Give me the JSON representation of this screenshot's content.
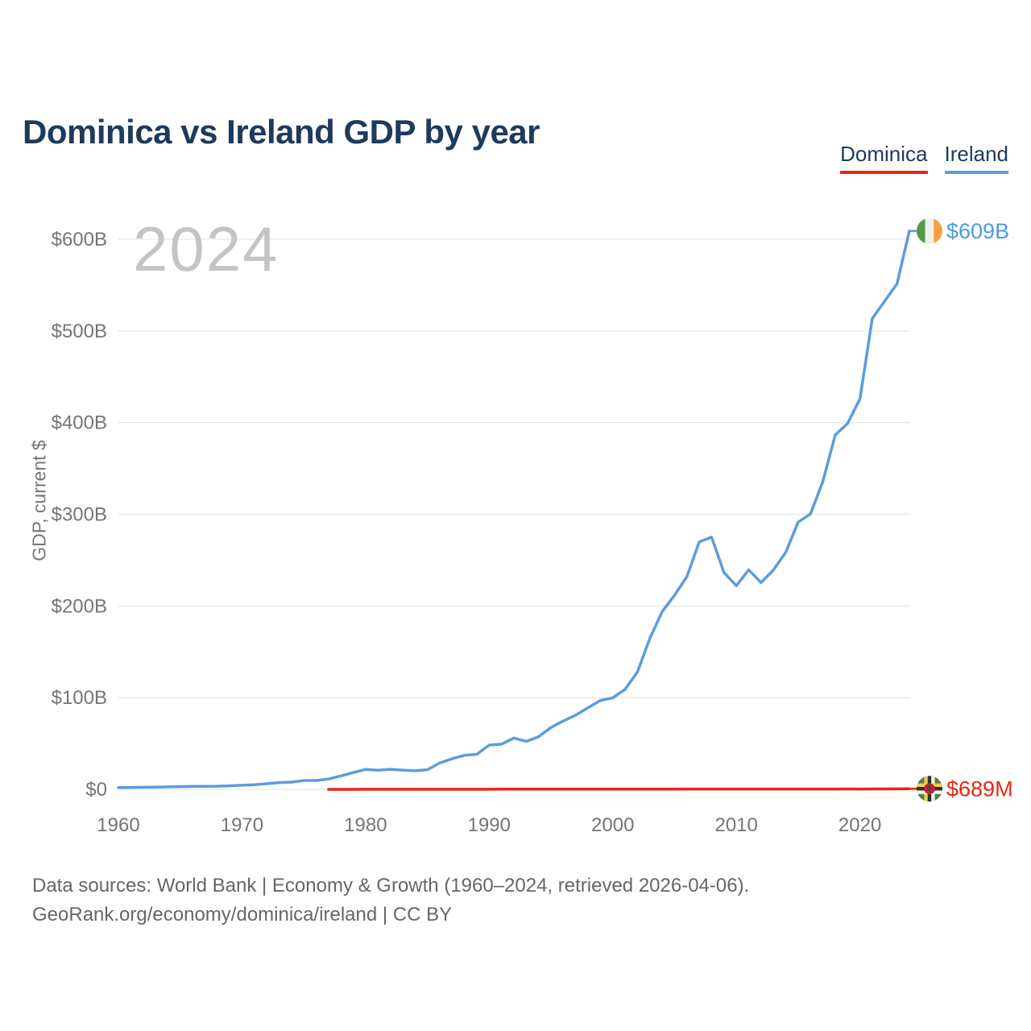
{
  "page": {
    "title": "Dominica vs Ireland GDP by year",
    "watermark_year": "2024",
    "footer_line1": "Data sources: World Bank | Economy & Growth (1960–2024, retrieved 2026-04-06).",
    "footer_line2": "GeoRank.org/economy/dominica/ireland | CC BY"
  },
  "legend": {
    "items": [
      {
        "label": "Dominica",
        "color": "#ee2414"
      },
      {
        "label": "Ireland",
        "color": "#5b9ddf"
      }
    ]
  },
  "chart_data": {
    "type": "line",
    "title": "Dominica vs Ireland GDP by year",
    "xlabel": "",
    "ylabel": "GDP, current $",
    "grid": "horizontal",
    "legend_position": "top-right",
    "xlim_years": [
      1960,
      2024
    ],
    "ylim_billions": [
      0,
      600
    ],
    "x_tick_years": [
      1960,
      1970,
      1980,
      1990,
      2000,
      2010,
      2020
    ],
    "y_gridlines_billions": [
      0,
      100,
      200,
      300,
      400,
      500,
      600
    ],
    "y_tick_labels": [
      "$0",
      "$100B",
      "$200B",
      "$300B",
      "$400B",
      "$500B",
      "$600B"
    ],
    "axis_text_color": "#757575",
    "gridline_color": "#e8e8e8",
    "series": [
      {
        "name": "Ireland",
        "color": "#5b9ddf",
        "label_color": "#4b9ce6",
        "unit": "billions USD",
        "end_label": "$609B",
        "flag_icon": "ireland-flag-icon",
        "start_year": 1960,
        "values": [
          1.94,
          2.09,
          2.26,
          2.43,
          2.73,
          2.95,
          3.15,
          3.32,
          3.43,
          3.87,
          4.45,
          5.03,
          6.19,
          7.34,
          7.92,
          9.62,
          9.61,
          11.28,
          14.63,
          18.31,
          21.78,
          20.88,
          21.84,
          20.95,
          20.32,
          21.44,
          28.79,
          33.41,
          37.1,
          38.22,
          48.31,
          49.28,
          55.99,
          52.27,
          57.44,
          67.49,
          74.59,
          80.97,
          89.09,
          96.95,
          99.83,
          109.12,
          128.09,
          164.74,
          193.89,
          211.65,
          232.15,
          269.92,
          275.04,
          236.44,
          222.08,
          239.46,
          225.57,
          239.25,
          258.58,
          291.46,
          300.39,
          335.88,
          386.5,
          399.06,
          425.89,
          513.56,
          532.42,
          551.39,
          609.03
        ]
      },
      {
        "name": "Dominica",
        "color": "#ee2414",
        "label_color": "#ee2414",
        "unit": "millions USD",
        "end_label": "$689M",
        "flag_icon": "dominica-flag-icon",
        "start_year": 1977,
        "values": [
          33,
          39,
          43,
          58,
          66,
          73,
          80,
          87,
          95,
          105,
          118,
          133,
          141,
          155,
          167,
          178,
          183,
          191,
          201,
          211,
          220,
          230,
          241,
          246,
          248,
          244,
          251,
          264,
          271,
          288,
          302,
          320,
          323,
          332,
          339,
          341,
          343,
          357,
          346,
          367,
          341,
          362,
          400,
          370,
          413,
          469,
          581,
          689
        ]
      }
    ]
  }
}
